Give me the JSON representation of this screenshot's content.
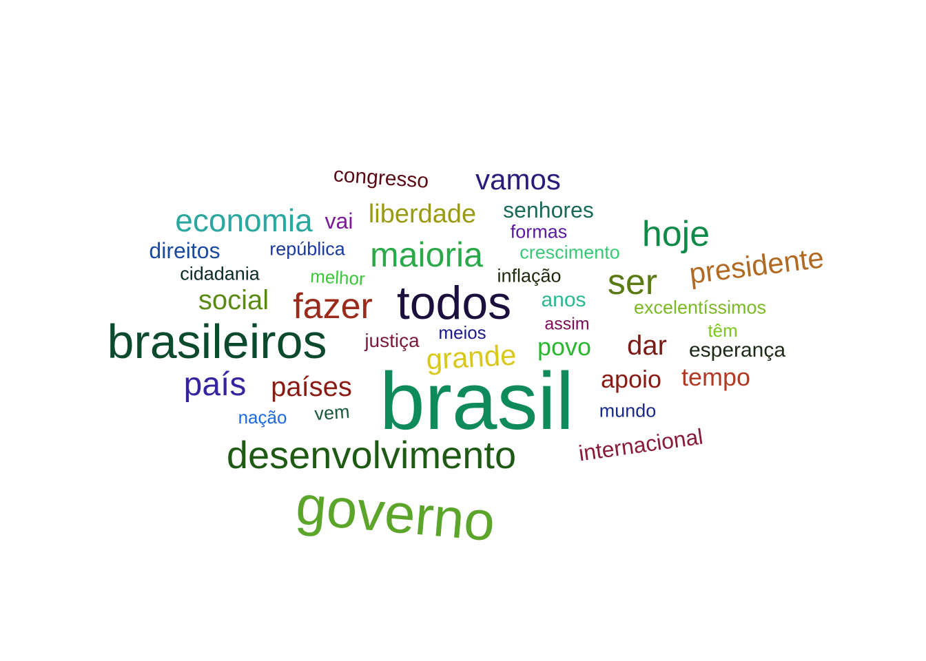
{
  "words": [
    {
      "text": "brasil",
      "color": "#0f8a5a"
    },
    {
      "text": "governo",
      "color": "#5aa52a"
    },
    {
      "text": "brasileiros",
      "color": "#0b4a2c"
    },
    {
      "text": "todos",
      "color": "#1c0f3d"
    },
    {
      "text": "desenvolvimento",
      "color": "#1e5a14"
    },
    {
      "text": "maioria",
      "color": "#2aa84a"
    },
    {
      "text": "hoje",
      "color": "#0f8a48"
    },
    {
      "text": "fazer",
      "color": "#9a2a1a"
    },
    {
      "text": "economia",
      "color": "#2aa8a0"
    },
    {
      "text": "ser",
      "color": "#5a7a14"
    },
    {
      "text": "presidente",
      "color": "#b06a24"
    },
    {
      "text": "país",
      "color": "#3424a0"
    },
    {
      "text": "social",
      "color": "#5a8a14"
    },
    {
      "text": "grande",
      "color": "#d8c81a"
    },
    {
      "text": "vamos",
      "color": "#2a1a7a"
    },
    {
      "text": "liberdade",
      "color": "#9a9a14"
    },
    {
      "text": "países",
      "color": "#8a1a14"
    },
    {
      "text": "dar",
      "color": "#7a1a14"
    },
    {
      "text": "povo",
      "color": "#2ab830"
    },
    {
      "text": "apoio",
      "color": "#8a1a14"
    },
    {
      "text": "tempo",
      "color": "#b03a24"
    },
    {
      "text": "senhores",
      "color": "#1a6a5a"
    },
    {
      "text": "internacional",
      "color": "#8a1a3a"
    },
    {
      "text": "direitos",
      "color": "#1a4aa0"
    },
    {
      "text": "esperança",
      "color": "#1a2a14"
    },
    {
      "text": "congresso",
      "color": "#5a0a14"
    },
    {
      "text": "justiça",
      "color": "#7a1a3a"
    },
    {
      "text": "anos",
      "color": "#2ab890"
    },
    {
      "text": "vai",
      "color": "#7a1a9a"
    },
    {
      "text": "república",
      "color": "#1a3aa0"
    },
    {
      "text": "excelentíssimos",
      "color": "#7ab824"
    },
    {
      "text": "crescimento",
      "color": "#3ac878"
    },
    {
      "text": "formas",
      "color": "#5a1aa0"
    },
    {
      "text": "cidadania",
      "color": "#0a2a2a"
    },
    {
      "text": "melhor",
      "color": "#3ac83a"
    },
    {
      "text": "inflação",
      "color": "#1a2a0a"
    },
    {
      "text": "assim",
      "color": "#7a0a5a"
    },
    {
      "text": "meios",
      "color": "#1a1a8a"
    },
    {
      "text": "têm",
      "color": "#7ac81a"
    },
    {
      "text": "nação",
      "color": "#1a6ae0"
    },
    {
      "text": "vem",
      "color": "#1a5a3a"
    },
    {
      "text": "mundo",
      "color": "#1a2a8a"
    }
  ]
}
